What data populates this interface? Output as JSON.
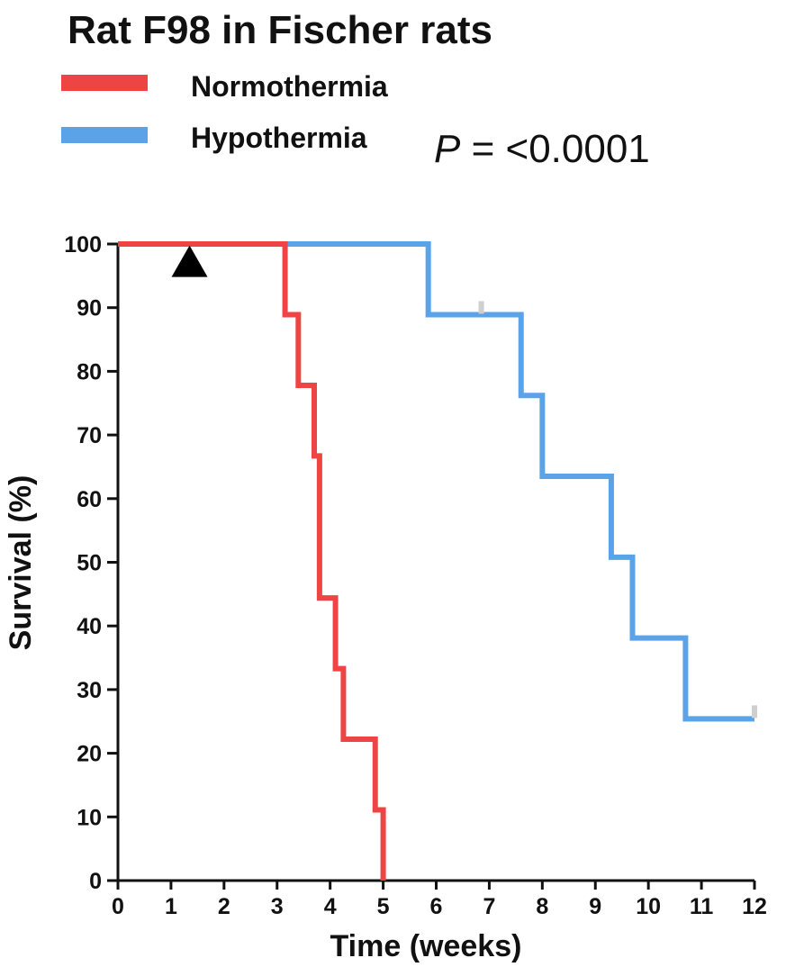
{
  "chart_data": {
    "type": "line",
    "subtype": "kaplan-meier step",
    "title": "Rat F98 in Fischer rats",
    "xlabel": "Time (weeks)",
    "ylabel": "Survival (%)",
    "xlim": [
      0,
      12
    ],
    "ylim": [
      0,
      100
    ],
    "x_ticks": [
      "0",
      "1",
      "2",
      "3",
      "4",
      "5",
      "6",
      "7",
      "8",
      "9",
      "10",
      "11",
      "12"
    ],
    "y_ticks": [
      "0",
      "10",
      "20",
      "30",
      "40",
      "50",
      "60",
      "70",
      "80",
      "90",
      "100"
    ],
    "grid": false,
    "legend_position": "top-left",
    "p_value": {
      "prefix": "P",
      "text": " = <0.0001"
    },
    "annotations": [
      {
        "type": "triangle-marker",
        "x": 1.35,
        "y": 97.5,
        "color": "#000000"
      }
    ],
    "series": [
      {
        "name": "Normothermia",
        "color": "#ef4444",
        "steps": [
          [
            0,
            100
          ],
          [
            3.15,
            88.9
          ],
          [
            3.4,
            77.8
          ],
          [
            3.7,
            66.7
          ],
          [
            3.8,
            44.4
          ],
          [
            4.1,
            33.3
          ],
          [
            4.25,
            22.2
          ],
          [
            4.85,
            11.1
          ],
          [
            5.0,
            0
          ]
        ],
        "end_x": 5.0,
        "censored": []
      },
      {
        "name": "Hypothermia",
        "color": "#5ba3e8",
        "steps": [
          [
            0,
            100
          ],
          [
            5.85,
            88.9
          ],
          [
            7.6,
            76.2
          ],
          [
            8.0,
            63.5
          ],
          [
            9.3,
            50.8
          ],
          [
            9.7,
            38.1
          ],
          [
            10.7,
            25.4
          ]
        ],
        "end_x": 12.0,
        "censored": [
          {
            "x": 6.85,
            "y": 88.9
          },
          {
            "x": 12.0,
            "y": 25.4
          }
        ]
      }
    ]
  }
}
